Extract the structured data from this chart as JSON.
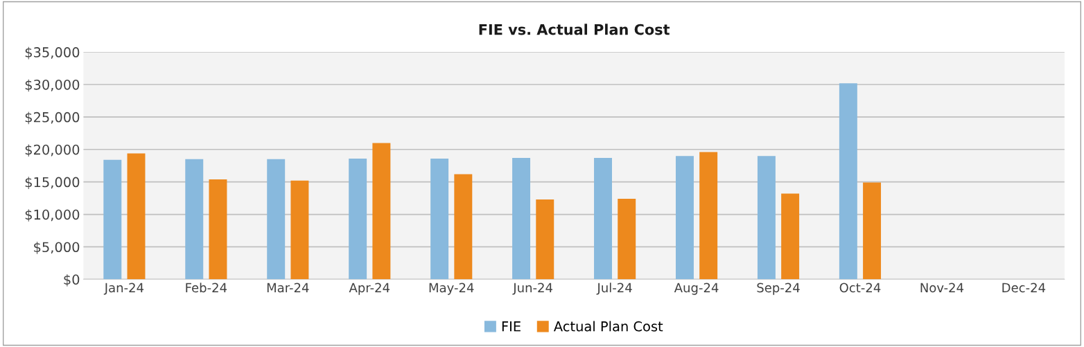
{
  "chart_data": {
    "type": "bar",
    "title": "FIE vs. Actual Plan Cost",
    "categories": [
      "Jan-24",
      "Feb-24",
      "Mar-24",
      "Apr-24",
      "May-24",
      "Jun-24",
      "Jul-24",
      "Aug-24",
      "Sep-24",
      "Oct-24",
      "Nov-24",
      "Dec-24"
    ],
    "series": [
      {
        "name": "FIE",
        "color": "#88b9dd",
        "values": [
          18400,
          18500,
          18500,
          18600,
          18600,
          18700,
          18700,
          19000,
          19000,
          30200,
          null,
          null
        ]
      },
      {
        "name": "Actual Plan Cost",
        "color": "#ed891d",
        "values": [
          19400,
          15400,
          15200,
          21000,
          16200,
          12300,
          12400,
          19600,
          13200,
          14900,
          null,
          null
        ]
      }
    ],
    "ylim": [
      0,
      35000
    ],
    "yticks": [
      {
        "value": 0,
        "label": "$0"
      },
      {
        "value": 5000,
        "label": "$5,000"
      },
      {
        "value": 10000,
        "label": "$10,000"
      },
      {
        "value": 15000,
        "label": "$15,000"
      },
      {
        "value": 20000,
        "label": "$20,000"
      },
      {
        "value": 25000,
        "label": "$25,000"
      },
      {
        "value": 30000,
        "label": "$30,000"
      },
      {
        "value": 35000,
        "label": "$35,000"
      }
    ],
    "grid": "y",
    "legend": "bottom"
  }
}
